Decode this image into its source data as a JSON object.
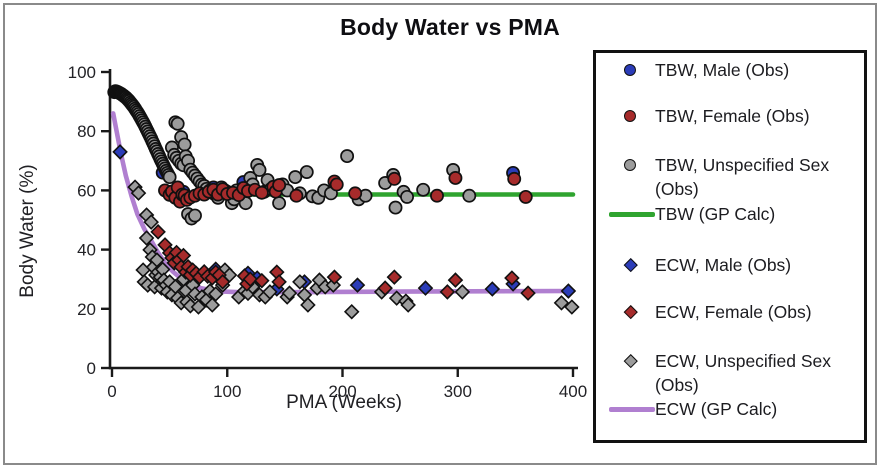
{
  "figure": {
    "title": "Body Water vs PMA"
  },
  "chart_data": {
    "type": "scatter",
    "title": "Body Water vs PMA",
    "xlabel": "PMA (Weeks)",
    "ylabel": "Body Water (%)",
    "xlim": [
      0,
      400
    ],
    "ylim": [
      0,
      100
    ],
    "x_ticks": [
      0,
      100,
      200,
      300,
      400
    ],
    "y_ticks": [
      0,
      20,
      40,
      60,
      80,
      100
    ],
    "grid": false,
    "legend_position": "right",
    "colors": {
      "male_blue": "#2b3cb8",
      "female_red": "#a62b2b",
      "unspecified_gray": "#9c9c9c",
      "tbw_line_green": "#2fa42f",
      "ecw_line_purple": "#b07fd0",
      "marker_outline": "#111111",
      "axis": "#1a1a1a"
    },
    "series": [
      {
        "label": "TBW, Male (Obs)",
        "type": "scatter",
        "marker": "circle",
        "color": "#2b3cb8",
        "points": [
          [
            44,
            66
          ],
          [
            62,
            59.5
          ],
          [
            88,
            61
          ],
          [
            114,
            62.8
          ],
          [
            348,
            65.9
          ]
        ]
      },
      {
        "label": "TBW, Female (Obs)",
        "type": "scatter",
        "marker": "circle",
        "color": "#a62b2b",
        "points": [
          [
            46,
            60
          ],
          [
            50,
            58.5
          ],
          [
            52,
            59.6
          ],
          [
            55,
            57.5
          ],
          [
            57,
            61
          ],
          [
            59,
            56.2
          ],
          [
            61,
            58.6
          ],
          [
            63,
            58.3
          ],
          [
            65,
            56.8
          ],
          [
            68,
            57.6
          ],
          [
            72,
            58.2
          ],
          [
            76,
            59
          ],
          [
            80,
            58.6
          ],
          [
            84,
            59.6
          ],
          [
            88,
            60.2
          ],
          [
            92,
            58.6
          ],
          [
            96,
            60.4
          ],
          [
            100,
            58.8
          ],
          [
            105,
            59.2
          ],
          [
            110,
            58.4
          ],
          [
            114,
            60.8
          ],
          [
            118,
            59.8
          ],
          [
            124,
            60.2
          ],
          [
            130,
            59.2
          ],
          [
            140,
            61.2
          ],
          [
            142,
            59.6
          ],
          [
            145,
            61.8
          ],
          [
            160,
            58.2
          ],
          [
            193,
            63
          ],
          [
            195,
            62
          ],
          [
            211,
            59
          ],
          [
            245,
            63.9
          ],
          [
            282,
            58.2
          ],
          [
            298,
            64.2
          ],
          [
            349,
            63.9
          ],
          [
            359,
            57.8
          ]
        ]
      },
      {
        "label": "TBW, Unspecified Sex (Obs)",
        "type": "scatter",
        "marker": "circle",
        "color": "#9c9c9c",
        "points": [
          [
            2,
            93.2
          ],
          [
            3,
            93.5
          ],
          [
            4,
            93.4
          ],
          [
            5,
            93.2
          ],
          [
            6,
            93
          ],
          [
            7,
            92.8
          ],
          [
            8,
            92.6
          ],
          [
            9,
            92.3
          ],
          [
            10,
            92
          ],
          [
            11,
            91.7
          ],
          [
            12,
            91.4
          ],
          [
            13,
            91
          ],
          [
            14,
            90.6
          ],
          [
            15,
            90.2
          ],
          [
            16,
            89.7
          ],
          [
            17,
            89.2
          ],
          [
            18,
            88.7
          ],
          [
            19,
            88.2
          ],
          [
            20,
            87.6
          ],
          [
            21,
            87
          ],
          [
            22,
            86.4
          ],
          [
            23,
            85.8
          ],
          [
            24,
            85.1
          ],
          [
            25,
            84.4
          ],
          [
            26,
            83.7
          ],
          [
            27,
            83
          ],
          [
            28,
            82.3
          ],
          [
            29,
            81.5
          ],
          [
            30,
            80.7
          ],
          [
            31,
            79.9
          ],
          [
            32,
            79.1
          ],
          [
            33,
            78.3
          ],
          [
            34,
            77.5
          ],
          [
            35,
            76.6
          ],
          [
            36,
            75.8
          ],
          [
            37,
            74.9
          ],
          [
            38,
            74
          ],
          [
            39,
            73.2
          ],
          [
            40,
            72.3
          ],
          [
            41,
            71.5
          ],
          [
            42,
            70.6
          ],
          [
            43,
            69.8
          ],
          [
            44,
            69
          ],
          [
            45,
            68.2
          ],
          [
            46,
            67.4
          ],
          [
            47,
            66.6
          ],
          [
            48,
            65.9
          ],
          [
            49,
            65.2
          ],
          [
            50,
            64.5
          ],
          [
            52,
            74.5
          ],
          [
            54,
            72
          ],
          [
            55,
            83
          ],
          [
            57,
            82.5
          ],
          [
            56,
            71
          ],
          [
            58,
            70
          ],
          [
            60,
            69
          ],
          [
            60,
            78
          ],
          [
            62,
            68.5
          ],
          [
            63,
            75.5
          ],
          [
            64,
            71.5
          ],
          [
            66,
            70
          ],
          [
            68,
            67
          ],
          [
            70,
            66
          ],
          [
            72,
            65
          ],
          [
            74,
            64
          ],
          [
            76,
            63
          ],
          [
            78,
            62
          ],
          [
            80,
            61.5
          ],
          [
            82,
            60.5
          ],
          [
            85,
            60
          ],
          [
            88,
            59
          ],
          [
            90,
            58.5
          ],
          [
            92,
            57.5
          ],
          [
            95,
            61
          ],
          [
            98,
            60
          ],
          [
            100,
            59.5
          ],
          [
            102,
            58.5
          ],
          [
            104,
            55.7
          ],
          [
            106,
            57
          ],
          [
            108,
            60
          ],
          [
            112,
            59
          ],
          [
            116,
            55.7
          ],
          [
            120,
            64.2
          ],
          [
            122,
            62
          ],
          [
            126,
            68.6
          ],
          [
            128,
            66.9
          ],
          [
            132,
            59.5
          ],
          [
            135,
            63.5
          ],
          [
            138,
            60.5
          ],
          [
            142,
            60
          ],
          [
            145,
            55.7
          ],
          [
            148,
            62
          ],
          [
            152,
            60
          ],
          [
            159,
            64.5
          ],
          [
            163,
            59
          ],
          [
            169,
            66.2
          ],
          [
            174,
            58
          ],
          [
            179,
            57.5
          ],
          [
            184,
            60
          ],
          [
            190,
            59
          ],
          [
            204,
            71.6
          ],
          [
            214,
            57
          ],
          [
            220,
            58.2
          ],
          [
            237,
            62.5
          ],
          [
            244,
            65.2
          ],
          [
            246,
            54.2
          ],
          [
            253,
            59.5
          ],
          [
            256,
            57.8
          ],
          [
            270,
            60.2
          ],
          [
            296,
            66.9
          ],
          [
            310,
            58.2
          ],
          [
            66,
            52
          ],
          [
            69,
            50.5
          ],
          [
            72,
            51.5
          ]
        ]
      },
      {
        "label": "TBW (GP Calc)",
        "type": "line",
        "color": "#2fa42f",
        "points": [
          [
            96,
            58.6
          ],
          [
            400,
            58.6
          ]
        ]
      },
      {
        "label": "ECW, Male (Obs)",
        "type": "scatter",
        "marker": "diamond",
        "color": "#2b3cb8",
        "points": [
          [
            7,
            73
          ],
          [
            90,
            33.4
          ],
          [
            118,
            32
          ],
          [
            126,
            30.4
          ],
          [
            143,
            26.7
          ],
          [
            167,
            29.1
          ],
          [
            213,
            28
          ],
          [
            272,
            27
          ],
          [
            330,
            26.7
          ],
          [
            348,
            28.4
          ],
          [
            396,
            26
          ]
        ]
      },
      {
        "label": "ECW, Female (Obs)",
        "type": "scatter",
        "marker": "diamond",
        "color": "#a62b2b",
        "points": [
          [
            40,
            46
          ],
          [
            46,
            41.6
          ],
          [
            50,
            38.9
          ],
          [
            52,
            37.2
          ],
          [
            54,
            35.5
          ],
          [
            56,
            39
          ],
          [
            58,
            36.5
          ],
          [
            60,
            34.1
          ],
          [
            62,
            38
          ],
          [
            64,
            32.4
          ],
          [
            66,
            34.2
          ],
          [
            68,
            31.4
          ],
          [
            70,
            33.1
          ],
          [
            73,
            32
          ],
          [
            76,
            30.7
          ],
          [
            80,
            32.5
          ],
          [
            83,
            31
          ],
          [
            87,
            30.4
          ],
          [
            90,
            32.4
          ],
          [
            93,
            31.4
          ],
          [
            96,
            29.1
          ],
          [
            115,
            31.1
          ],
          [
            117,
            28.4
          ],
          [
            120,
            30
          ],
          [
            130,
            29.5
          ],
          [
            143,
            32.4
          ],
          [
            145,
            29.1
          ],
          [
            193,
            30.7
          ],
          [
            237,
            27
          ],
          [
            245,
            30.7
          ],
          [
            291,
            25.7
          ],
          [
            298,
            29.7
          ],
          [
            347,
            30.4
          ],
          [
            361,
            25.3
          ]
        ]
      },
      {
        "label": "ECW, Unspecified Sex (Obs)",
        "type": "scatter",
        "marker": "diamond",
        "color": "#9c9c9c",
        "points": [
          [
            20,
            61.1
          ],
          [
            23,
            59.1
          ],
          [
            30,
            51.7
          ],
          [
            34,
            49.3
          ],
          [
            27,
            33.1
          ],
          [
            28,
            29.1
          ],
          [
            30,
            43.9
          ],
          [
            31,
            28
          ],
          [
            33,
            39.9
          ],
          [
            35,
            37.5
          ],
          [
            36,
            34.1
          ],
          [
            37,
            27.4
          ],
          [
            38,
            31.4
          ],
          [
            39,
            36.5
          ],
          [
            40,
            32.4
          ],
          [
            42,
            30.7
          ],
          [
            43,
            27
          ],
          [
            44,
            33.3
          ],
          [
            45,
            29.7
          ],
          [
            47,
            28
          ],
          [
            48,
            25.7
          ],
          [
            50,
            29.1
          ],
          [
            52,
            24.7
          ],
          [
            55,
            27.5
          ],
          [
            57,
            23.6
          ],
          [
            60,
            22
          ],
          [
            62,
            30
          ],
          [
            64,
            26.2
          ],
          [
            65,
            22.3
          ],
          [
            68,
            21
          ],
          [
            70,
            28
          ],
          [
            72,
            25
          ],
          [
            75,
            20.6
          ],
          [
            78,
            24
          ],
          [
            82,
            23
          ],
          [
            85,
            26
          ],
          [
            87,
            21.3
          ],
          [
            90,
            25
          ],
          [
            96,
            28
          ],
          [
            98,
            33.1
          ],
          [
            102,
            31.4
          ],
          [
            110,
            24
          ],
          [
            115,
            26
          ],
          [
            118,
            25.2
          ],
          [
            122,
            27.4
          ],
          [
            128,
            24.7
          ],
          [
            133,
            24
          ],
          [
            137,
            25.7
          ],
          [
            152,
            24
          ],
          [
            154,
            25.3
          ],
          [
            163,
            29.1
          ],
          [
            167,
            24.7
          ],
          [
            170,
            21.3
          ],
          [
            178,
            27
          ],
          [
            180,
            29.7
          ],
          [
            185,
            27.4
          ],
          [
            192,
            28
          ],
          [
            208,
            19
          ],
          [
            234,
            25.7
          ],
          [
            247,
            23.6
          ],
          [
            255,
            22.6
          ],
          [
            257,
            21.3
          ],
          [
            304,
            25.7
          ],
          [
            390,
            22
          ],
          [
            399,
            20.6
          ]
        ]
      },
      {
        "label": "ECW (GP Calc)",
        "type": "line",
        "color": "#b07fd0",
        "points": [
          [
            1,
            86
          ],
          [
            4,
            80
          ],
          [
            8,
            72
          ],
          [
            12,
            65
          ],
          [
            17,
            58
          ],
          [
            22,
            52
          ],
          [
            28,
            47
          ],
          [
            34,
            43
          ],
          [
            40,
            39
          ],
          [
            46,
            35.5
          ],
          [
            53,
            32.5
          ],
          [
            60,
            30.2
          ],
          [
            68,
            28.3
          ],
          [
            77,
            27
          ],
          [
            87,
            26.2
          ],
          [
            97,
            25.8
          ],
          [
            110,
            25.6
          ],
          [
            150,
            25.6
          ],
          [
            250,
            25.8
          ],
          [
            400,
            26
          ]
        ]
      }
    ]
  }
}
